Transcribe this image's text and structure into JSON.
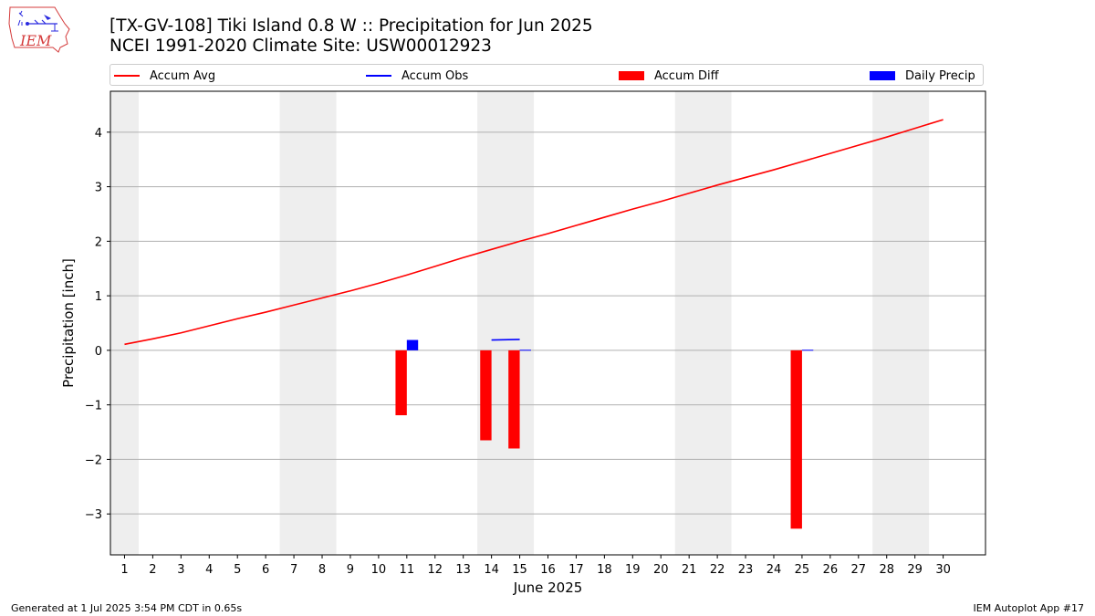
{
  "header": {
    "title_line1": "[TX-GV-108] Tiki Island 0.8 W :: Precipitation for Jun 2025",
    "title_line2": "NCEI 1991-2020 Climate Site: USW00012923",
    "logo_text": "IEM"
  },
  "footer": {
    "left": "Generated at 1 Jul 2025 3:54 PM CDT in 0.65s",
    "right": "IEM Autoplot App #17"
  },
  "legend": {
    "items": [
      {
        "label": "Accum Avg",
        "kind": "line",
        "color": "#ff0000"
      },
      {
        "label": "Accum Obs",
        "kind": "line",
        "color": "#0000ff"
      },
      {
        "label": "Accum Diff",
        "kind": "patch",
        "color": "#ff0000"
      },
      {
        "label": "Daily Precip",
        "kind": "patch",
        "color": "#0000ff"
      }
    ]
  },
  "chart_data": {
    "type": "bar",
    "xlabel": "June 2025",
    "ylabel": "Precipitation [inch]",
    "xlim": [
      0.5,
      31.5
    ],
    "ylim": [
      -3.75,
      4.75
    ],
    "x_ticks": [
      1,
      2,
      3,
      4,
      5,
      6,
      7,
      8,
      9,
      10,
      11,
      12,
      13,
      14,
      15,
      16,
      17,
      18,
      19,
      20,
      21,
      22,
      23,
      24,
      25,
      26,
      27,
      28,
      29,
      30
    ],
    "y_ticks": [
      -3,
      -2,
      -1,
      0,
      1,
      2,
      3,
      4
    ],
    "y_tick_labels": [
      "−3",
      "−2",
      "−1",
      "0",
      "1",
      "2",
      "3",
      "4"
    ],
    "grid": "horizontal",
    "legend_position": "top",
    "weekend_shading": [
      [
        0.5,
        1.5
      ],
      [
        6.5,
        8.5
      ],
      [
        13.5,
        15.5
      ],
      [
        20.5,
        22.5
      ],
      [
        27.5,
        29.5
      ]
    ],
    "weekend_color": "#eeeeee",
    "series": [
      {
        "name": "Accum Avg",
        "kind": "line",
        "color": "#ff0000",
        "x": [
          1,
          2,
          3,
          4,
          5,
          6,
          7,
          8,
          9,
          10,
          11,
          12,
          13,
          14,
          15,
          16,
          17,
          18,
          19,
          20,
          21,
          22,
          23,
          24,
          25,
          26,
          27,
          28,
          29,
          30
        ],
        "values": [
          0.11,
          0.21,
          0.32,
          0.45,
          0.58,
          0.7,
          0.83,
          0.96,
          1.09,
          1.23,
          1.38,
          1.54,
          1.7,
          1.85,
          2.0,
          2.14,
          2.29,
          2.44,
          2.59,
          2.73,
          2.88,
          3.03,
          3.17,
          3.31,
          3.46,
          3.61,
          3.76,
          3.91,
          4.07,
          4.23
        ]
      },
      {
        "name": "Accum Obs",
        "kind": "line",
        "color": "#0000ff",
        "x": [
          14,
          15
        ],
        "values": [
          0.19,
          0.2
        ]
      },
      {
        "name": "Accum Diff",
        "kind": "bar",
        "color": "#ff0000",
        "x": [
          11,
          14,
          15,
          25
        ],
        "values": [
          -1.19,
          -1.65,
          -1.8,
          -3.27
        ]
      },
      {
        "name": "Daily Precip",
        "kind": "bar",
        "color": "#0000ff",
        "x": [
          11,
          15,
          25
        ],
        "values": [
          0.19,
          0.01,
          0.01
        ]
      }
    ]
  }
}
